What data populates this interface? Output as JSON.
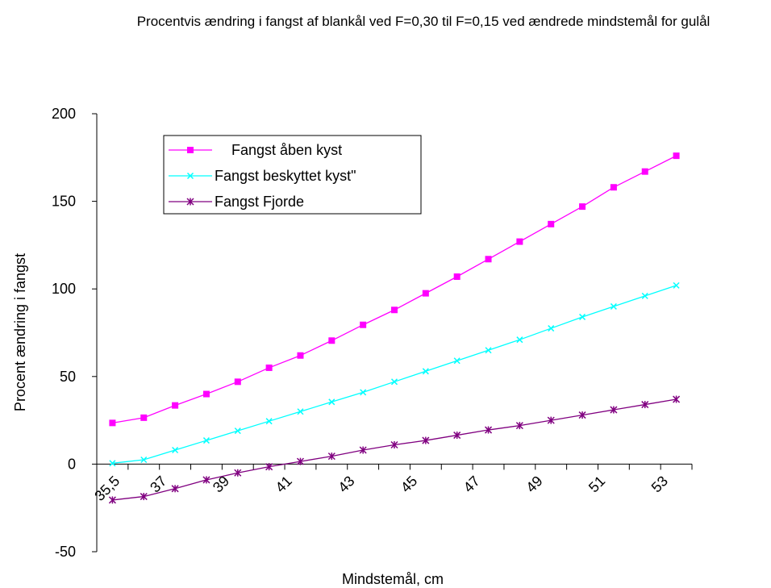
{
  "chart_data": {
    "type": "line",
    "title": "Procentvis ændring i fangst af blankål ved F=0,30 til F=0,15 ved ændrede mindstemål for gulål",
    "xlabel": "Mindstemål, cm",
    "ylabel": "Procent ændring i fangst",
    "ylim": [
      -50,
      200
    ],
    "yticks": [
      -50,
      0,
      50,
      100,
      150,
      200
    ],
    "x": [
      35.5,
      36.5,
      37.5,
      38.5,
      39.5,
      40.5,
      41.5,
      42.5,
      43.5,
      44.5,
      45.5,
      46.5,
      47.5,
      48.5,
      49.5,
      50.5,
      51.5,
      52.5,
      53.5
    ],
    "xtick_labels": [
      "35,5",
      "37",
      "39",
      "41",
      "43",
      "45",
      "47",
      "49",
      "51",
      "53"
    ],
    "xtick_values": [
      35.5,
      37,
      39,
      41,
      43,
      45,
      47,
      49,
      51,
      53
    ],
    "legend_position": "top-left",
    "grid": false,
    "series": [
      {
        "name": "Fangst åben kyst",
        "color": "#ff00ff",
        "marker": "square",
        "values": [
          23.5,
          26.5,
          33.5,
          40,
          47,
          55,
          62,
          70.5,
          79.5,
          88,
          97.5,
          107,
          117,
          127,
          137,
          147,
          158,
          167,
          176
        ]
      },
      {
        "name": "Fangst beskyttet kyst\"",
        "color": "#00ffff",
        "marker": "x",
        "values": [
          0.5,
          2.5,
          8,
          13.5,
          19,
          24.5,
          30,
          35.5,
          41,
          47,
          53,
          59,
          65,
          71,
          77.5,
          84,
          90,
          96,
          102
        ]
      },
      {
        "name": "Fangst Fjorde",
        "color": "#800080",
        "marker": "star",
        "values": [
          -20.5,
          -18.5,
          -14,
          -9,
          -5,
          -1.5,
          1.5,
          4.5,
          8,
          11,
          13.5,
          16.5,
          19.5,
          22,
          25,
          28,
          31,
          34,
          37
        ]
      }
    ]
  }
}
